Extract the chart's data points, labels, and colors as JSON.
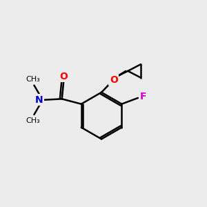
{
  "background_color": "#ececec",
  "bond_color": "#000000",
  "atom_colors": {
    "O": "#ff0000",
    "N": "#0000cc",
    "F": "#cc00cc",
    "C": "#000000"
  },
  "figsize": [
    3.0,
    3.0
  ],
  "dpi": 100
}
